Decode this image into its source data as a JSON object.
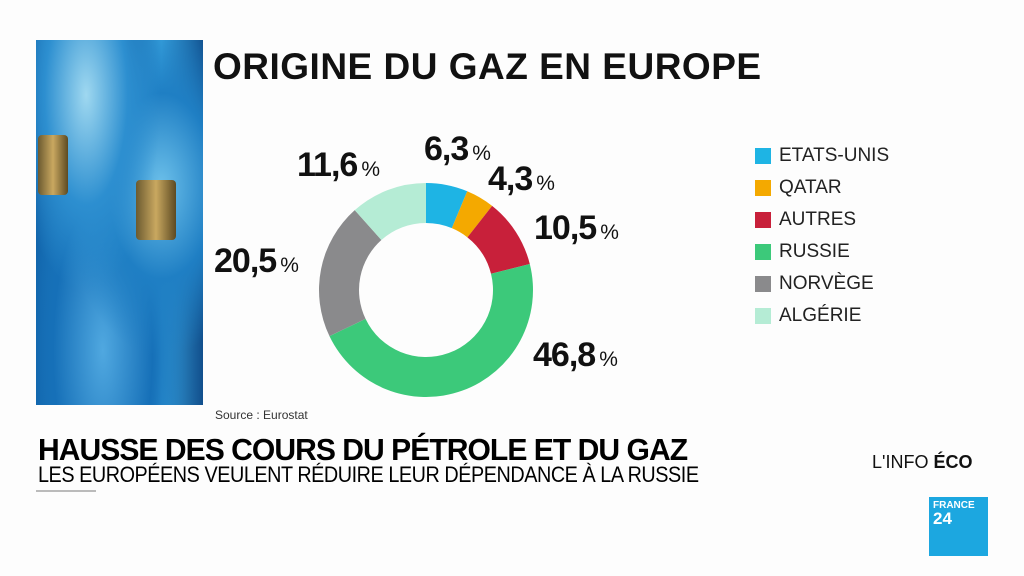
{
  "title": "ORIGINE DU GAZ EN EUROPE",
  "source": "Source :  Eurostat",
  "percent_sign": "%",
  "chart_data": {
    "type": "pie",
    "donut": true,
    "title": "ORIGINE DU GAZ EN EUROPE",
    "categories": [
      "ETATS-UNIS",
      "QATAR",
      "AUTRES",
      "RUSSIE",
      "NORVÈGE",
      "ALGÉRIE"
    ],
    "values": [
      6.3,
      4.3,
      10.5,
      46.8,
      20.5,
      11.6
    ],
    "value_labels": [
      "6,3",
      "4,3",
      "10,5",
      "46,8",
      "20,5",
      "11,6"
    ],
    "colors": [
      "#1eb4e4",
      "#f4a900",
      "#c8203a",
      "#3cc97a",
      "#8a8a8c",
      "#b5ecd5"
    ],
    "legend_position": "right"
  },
  "headline": "HAUSSE DES COURS DU PÉTROLE ET DU GAZ",
  "subheadline": "LES EUROPÉENS VEULENT RÉDUIRE LEUR DÉPENDANCE À LA RUSSIE",
  "segment": {
    "prefix": "L'INFO",
    "bold": "ÉCO"
  },
  "logo": {
    "line1": "FRANCE",
    "line2": "24"
  }
}
